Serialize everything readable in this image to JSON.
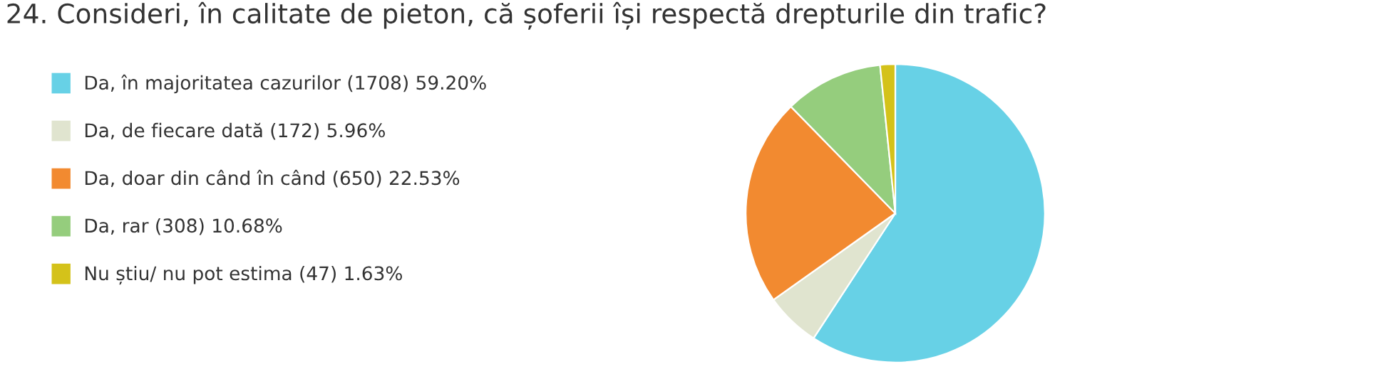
{
  "chart_data": {
    "type": "pie",
    "title": "24. Consideri, în calitate de pieton, că șoferii își respectă drepturile din trafic?",
    "categories": [
      "Da, în majoritatea cazurilor (1708) 59.20%",
      "Da, de fiecare dată (172) 5.96%",
      "Da, doar din când în când (650) 22.53%",
      "Da, rar (308) 10.68%",
      "Nu știu/ nu pot estima (47) 1.63%"
    ],
    "values": [
      59.2,
      5.96,
      22.53,
      10.68,
      1.63
    ],
    "colors": [
      "#67d1e6",
      "#e0e4cf",
      "#f28a30",
      "#95cd7d",
      "#d4c21a"
    ],
    "legend": "left"
  }
}
